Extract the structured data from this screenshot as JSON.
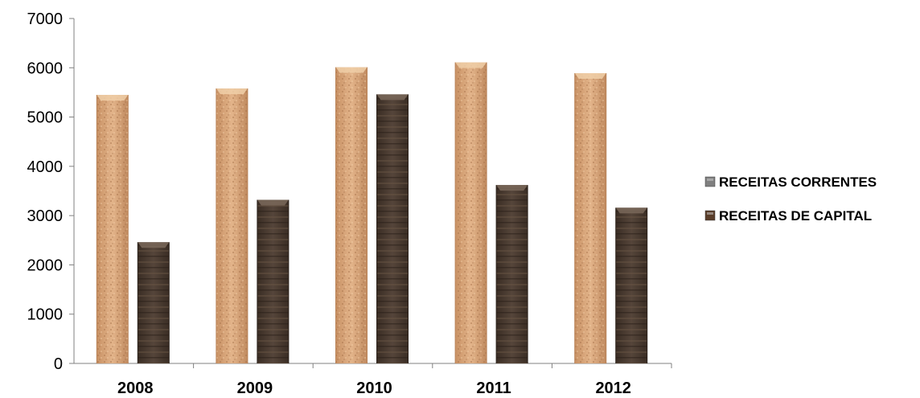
{
  "chart_data": {
    "type": "bar",
    "categories": [
      "2008",
      "2009",
      "2010",
      "2011",
      "2012"
    ],
    "series": [
      {
        "name": "RECEITAS CORRENTES",
        "values": [
          5450,
          5580,
          6010,
          6110,
          5890
        ]
      },
      {
        "name": "RECEITAS DE CAPITAL",
        "values": [
          2460,
          3320,
          5460,
          3620,
          3160
        ]
      }
    ],
    "ylim": [
      0,
      7000
    ],
    "yticks": [
      "0",
      "1000",
      "2000",
      "3000",
      "4000",
      "5000",
      "6000",
      "7000"
    ],
    "legend_position": "right",
    "grid": false,
    "colors": {
      "series1_fill": "#d9a77c",
      "series1_dark": "#b98358",
      "series2_fill": "#4a3b30",
      "series2_dark": "#2e241d",
      "axis": "#808080",
      "legend1_swatch": "#7f7f7f",
      "legend2_swatch": "#5a3e2a"
    }
  }
}
